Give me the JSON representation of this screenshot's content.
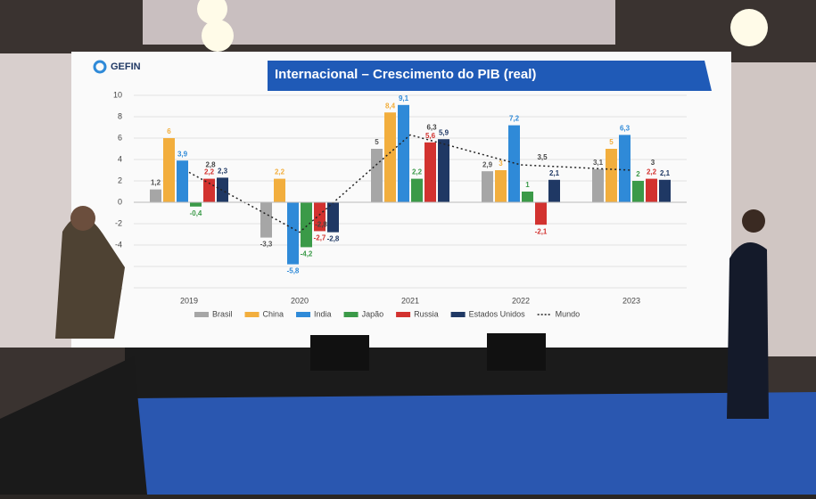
{
  "logo": "GEFIN",
  "chart_data": {
    "type": "bar",
    "title": "Internacional – Crescimento do PIB (real)",
    "categories": [
      "2019",
      "2020",
      "2021",
      "2022",
      "2023"
    ],
    "ylim": [
      -8,
      10
    ],
    "yticks": [
      -8,
      -6,
      -4,
      -2,
      0,
      2,
      4,
      6,
      8,
      10
    ],
    "grid": true,
    "legend": "bottom",
    "series": [
      {
        "name": "Brasil",
        "color": "#a6a6a6",
        "values": [
          1.2,
          -3.3,
          5,
          2.9,
          3.1
        ],
        "value_labels": [
          "1,2",
          "-3,3",
          "5",
          "2,9",
          "3,1"
        ]
      },
      {
        "name": "China",
        "color": "#f2ae3d",
        "values": [
          6,
          2.2,
          8.4,
          3,
          5
        ],
        "value_labels": [
          "6",
          "2,2",
          "8,4",
          "3",
          "5"
        ]
      },
      {
        "name": "India",
        "color": "#2f8ad8",
        "values": [
          3.9,
          -5.8,
          9.1,
          7.2,
          6.3
        ],
        "value_labels": [
          "3,9",
          "-5,8",
          "9,1",
          "7,2",
          "6,3"
        ]
      },
      {
        "name": "Japão",
        "color": "#3b9a48",
        "values": [
          -0.4,
          -4.2,
          2.2,
          1,
          2
        ],
        "value_labels": [
          "-0,4",
          "-4,2",
          "2,2",
          "1",
          "2"
        ]
      },
      {
        "name": "Russia",
        "color": "#d2322f",
        "values": [
          2.2,
          -2.7,
          5.6,
          -2.1,
          2.2
        ],
        "value_labels": [
          "2,2",
          "-2,7",
          "5,6",
          "-2,1",
          "2,2"
        ]
      },
      {
        "name": "Estados Unidos",
        "color": "#1f3864",
        "values": [
          2.3,
          -2.8,
          5.9,
          2.1,
          2.1
        ],
        "value_labels": [
          "2,3",
          "-2,8",
          "5,9",
          "2,1",
          "2,1"
        ]
      },
      {
        "name": "Mundo",
        "type": "line",
        "color": "#222222",
        "values": [
          2.8,
          -2.8,
          6.3,
          3.5,
          3
        ],
        "value_labels": [
          "2,8",
          "-2,8",
          "6,3",
          "3,5",
          "3"
        ]
      }
    ]
  }
}
